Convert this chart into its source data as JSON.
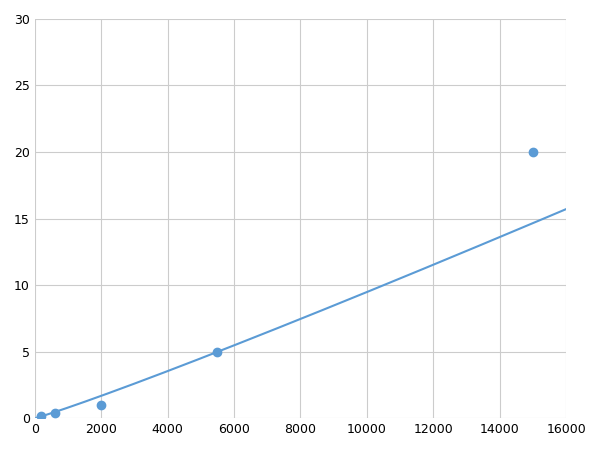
{
  "x": [
    200,
    600,
    2000,
    5500,
    15000
  ],
  "y": [
    0.2,
    0.4,
    1.0,
    5.0,
    20.0
  ],
  "line_color": "#5B9BD5",
  "marker_color": "#5B9BD5",
  "marker_size": 6,
  "line_width": 1.5,
  "xlim": [
    0,
    16000
  ],
  "ylim": [
    0,
    30
  ],
  "xticks": [
    0,
    2000,
    4000,
    6000,
    8000,
    10000,
    12000,
    14000,
    16000
  ],
  "yticks": [
    0,
    5,
    10,
    15,
    20,
    25,
    30
  ],
  "grid_color": "#CCCCCC",
  "background_color": "#FFFFFF",
  "figsize": [
    6.0,
    4.5
  ],
  "dpi": 100
}
